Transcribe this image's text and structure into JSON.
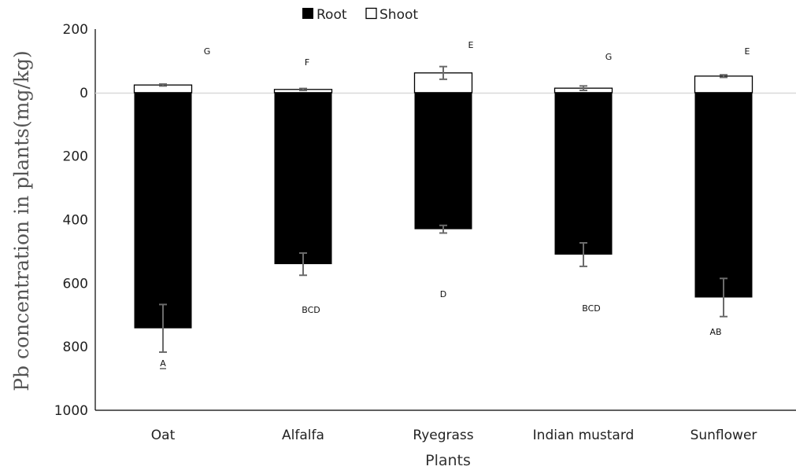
{
  "chart_data": {
    "type": "bar",
    "ylabel": "Pb concentration in plants(mg/kg)",
    "xlabel": "Plants",
    "categories": [
      "Oat",
      "Alfalfa",
      "Ryegrass",
      "Indian mustard",
      "Sunflower"
    ],
    "y_tick_labels": [
      "200",
      "0",
      "200",
      "400",
      "600",
      "800",
      "1000"
    ],
    "y_tick_values": [
      200,
      0,
      -200,
      -400,
      -600,
      -800,
      -1000
    ],
    "ylim": [
      -1000,
      200
    ],
    "orientation": "shoot plotted upward from 0, root plotted downward from 0",
    "legend_position": "top",
    "series": [
      {
        "name": "Root",
        "color": "#000000",
        "values": [
          -742,
          -540,
          -430,
          -510,
          -645
        ],
        "errors": [
          75,
          35,
          12,
          37,
          60
        ],
        "letters": [
          "A",
          "BCD",
          "D",
          "BCD",
          "AB"
        ]
      },
      {
        "name": "Shoot",
        "color": "#ffffff",
        "values": [
          24,
          10,
          62,
          14,
          52
        ],
        "errors": [
          3,
          3,
          20,
          7,
          4
        ],
        "letters": [
          "G",
          "F",
          "E",
          "G",
          "E"
        ]
      }
    ]
  }
}
